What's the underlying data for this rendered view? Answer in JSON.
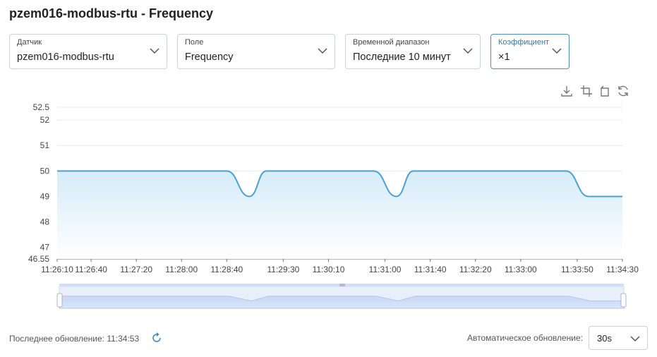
{
  "page": {
    "title": "pzem016-modbus-rtu - Frequency"
  },
  "controls": [
    {
      "label": "Датчик",
      "value": "pzem016-modbus-rtu"
    },
    {
      "label": "Поле",
      "value": "Frequency"
    },
    {
      "label": "Временной диапазон",
      "value": "Последние 10 минут"
    },
    {
      "label": "Коэффициент",
      "value": "×1"
    }
  ],
  "toolbar": [
    "download-icon",
    "zoom-select-icon",
    "zoom-reset-icon",
    "restore-icon"
  ],
  "footer": {
    "last_update_label": "Последнее обновление: 11:34:53",
    "auto_refresh_label": "Автоматическое обновление:",
    "auto_refresh_value": "30s"
  },
  "colors": {
    "line": "#4a9fd8",
    "area_top": "#d6ebf9",
    "accent": "#4a8ec8"
  },
  "chart_data": {
    "type": "area",
    "title": "",
    "xlabel": "",
    "ylabel": "",
    "x_ticks": [
      "11:26:10",
      "11:26:40",
      "11:27:20",
      "11:28:00",
      "11:28:40",
      "11:29:30",
      "11:30:10",
      "11:31:00",
      "11:31:40",
      "11:32:20",
      "11:33:00",
      "11:33:50",
      "11:34:30"
    ],
    "y_ticks": [
      "46.55",
      "47",
      "48",
      "49",
      "50",
      "51",
      "52",
      "52.5"
    ],
    "ylim": [
      46.55,
      52.5
    ],
    "grid": true,
    "series": [
      {
        "x": [
          "11:26:10",
          "11:28:40",
          "11:29:00",
          "11:29:15",
          "11:30:50",
          "11:31:10",
          "11:31:25",
          "11:33:40",
          "11:34:00",
          "11:34:30"
        ],
        "values": [
          50,
          50,
          49,
          50,
          50,
          49,
          50,
          50,
          49,
          49
        ]
      }
    ]
  }
}
